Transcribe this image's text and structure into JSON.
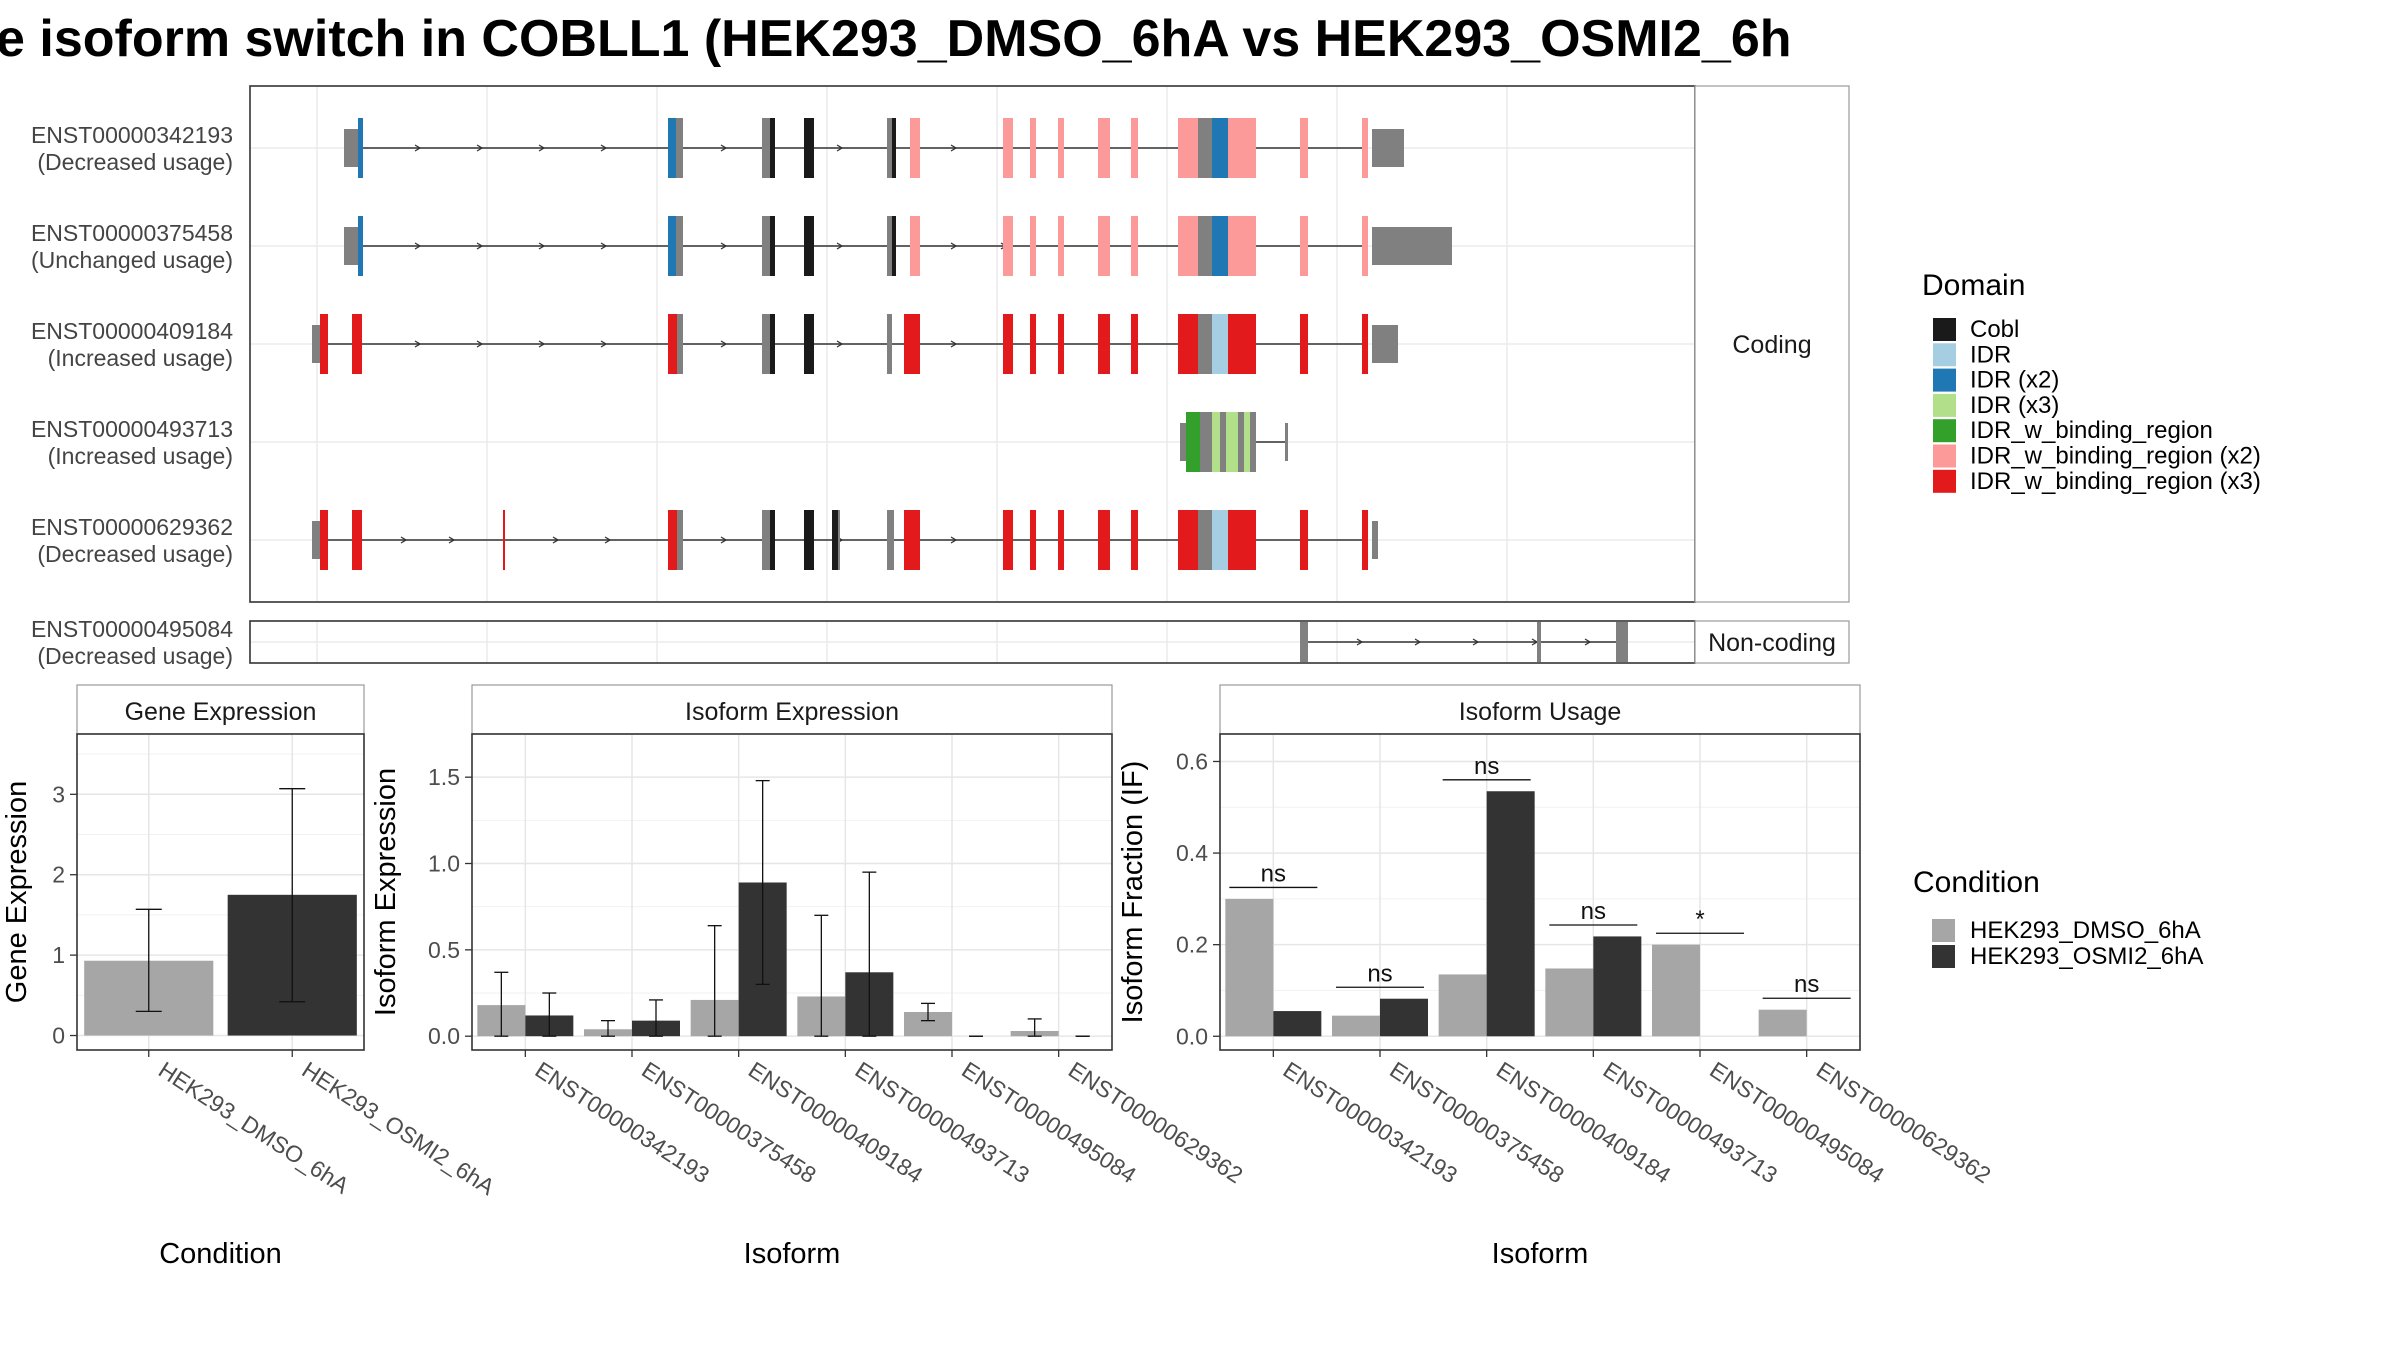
{
  "title": "e isoform switch in COBLL1 (HEK293_DMSO_6hA vs HEK293_OSMI2_6h",
  "gene_structure": {
    "coding_strip_label": "Coding",
    "noncoding_strip_label": "Non-coding",
    "transcripts": [
      {
        "id": "ENST00000342193",
        "usage": "(Decreased usage)",
        "group": "coding"
      },
      {
        "id": "ENST00000375458",
        "usage": "(Unchanged usage)",
        "group": "coding"
      },
      {
        "id": "ENST00000409184",
        "usage": "(Increased usage)",
        "group": "coding"
      },
      {
        "id": "ENST00000493713",
        "usage": "(Increased usage)",
        "group": "coding"
      },
      {
        "id": "ENST00000629362",
        "usage": "(Decreased usage)",
        "group": "coding"
      },
      {
        "id": "ENST00000495084",
        "usage": "(Decreased usage)",
        "group": "noncoding"
      }
    ]
  },
  "domain_legend": {
    "title": "Domain",
    "items": [
      {
        "label": "Cobl",
        "color": "#1a1a1a"
      },
      {
        "label": "IDR",
        "color": "#a6cee3"
      },
      {
        "label": "IDR (x2)",
        "color": "#1f78b4"
      },
      {
        "label": "IDR (x3)",
        "color": "#b2df8a"
      },
      {
        "label": "IDR_w_binding_region",
        "color": "#33a02c"
      },
      {
        "label": "IDR_w_binding_region (x2)",
        "color": "#fb9a99"
      },
      {
        "label": "IDR_w_binding_region (x3)",
        "color": "#e31a1c"
      }
    ]
  },
  "condition_legend": {
    "title": "Condition",
    "items": [
      {
        "label": "HEK293_DMSO_6hA",
        "color": "#a6a6a6"
      },
      {
        "label": "HEK293_OSMI2_6hA",
        "color": "#333333"
      }
    ]
  },
  "chart_data": [
    {
      "type": "bar",
      "title": "Gene Expression",
      "xlabel": "Condition",
      "ylabel": "Gene Expression",
      "categories": [
        "HEK293_DMSO_6hA",
        "HEK293_OSMI2_6hA"
      ],
      "values": [
        0.93,
        1.75
      ],
      "error_low": [
        0.3,
        0.42
      ],
      "error_high": [
        1.57,
        3.07
      ],
      "ylim": [
        -0.18,
        3.75
      ],
      "yticks": [
        0,
        1,
        2,
        3
      ]
    },
    {
      "type": "bar",
      "title": "Isoform Expression",
      "xlabel": "Isoform",
      "ylabel": "Isoform Expression",
      "categories": [
        "ENST00000342193",
        "ENST00000375458",
        "ENST00000409184",
        "ENST00000493713",
        "ENST00000495084",
        "ENST00000629362"
      ],
      "series": [
        {
          "name": "HEK293_DMSO_6hA",
          "values": [
            0.18,
            0.04,
            0.21,
            0.23,
            0.14,
            0.03
          ],
          "error_low": [
            0.0,
            0.0,
            0.0,
            0.0,
            0.09,
            0.0
          ],
          "error_high": [
            0.37,
            0.09,
            0.64,
            0.7,
            0.19,
            0.1
          ]
        },
        {
          "name": "HEK293_OSMI2_6hA",
          "values": [
            0.12,
            0.09,
            0.89,
            0.37,
            0.0,
            0.0
          ],
          "error_low": [
            0.0,
            0.0,
            0.3,
            0.0,
            0.0,
            0.0
          ],
          "error_high": [
            0.25,
            0.21,
            1.48,
            0.95,
            0.0,
            0.0
          ]
        }
      ],
      "ylim": [
        -0.08,
        1.75
      ],
      "yticks": [
        0.0,
        0.5,
        1.0,
        1.5
      ]
    },
    {
      "type": "bar",
      "title": "Isoform Usage",
      "xlabel": "Isoform",
      "ylabel": "Isoform Fraction (IF)",
      "categories": [
        "ENST00000342193",
        "ENST00000375458",
        "ENST00000409184",
        "ENST00000493713",
        "ENST00000495084",
        "ENST00000629362"
      ],
      "series": [
        {
          "name": "HEK293_DMSO_6hA",
          "values": [
            0.3,
            0.045,
            0.135,
            0.148,
            0.2,
            0.058
          ]
        },
        {
          "name": "HEK293_OSMI2_6hA",
          "values": [
            0.055,
            0.082,
            0.535,
            0.218,
            0.0,
            0.0
          ]
        }
      ],
      "significance": [
        "ns",
        "ns",
        "ns",
        "ns",
        "*",
        "ns"
      ],
      "ylim": [
        -0.03,
        0.66
      ],
      "yticks": [
        0.0,
        0.2,
        0.4,
        0.6
      ]
    }
  ]
}
